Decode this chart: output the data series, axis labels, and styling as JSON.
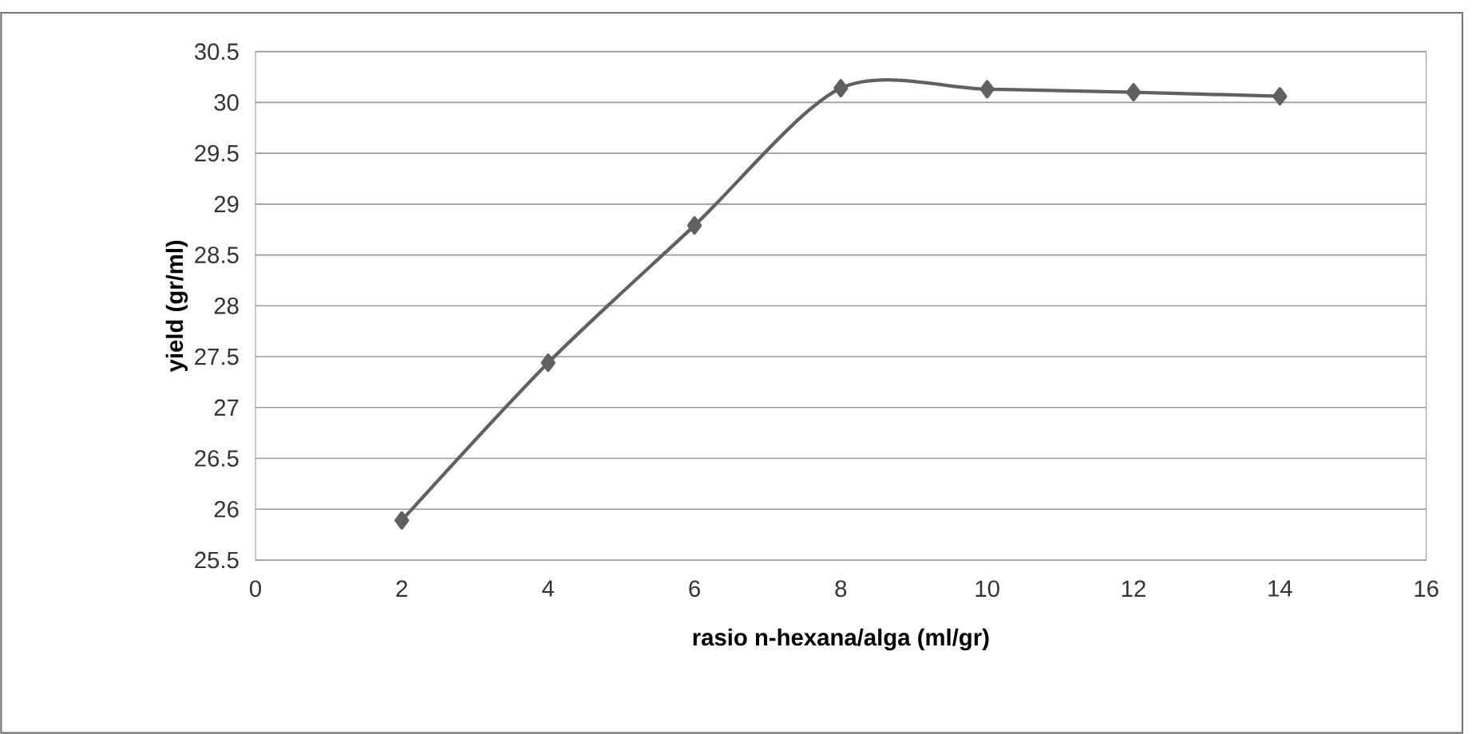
{
  "chart_data": {
    "type": "line",
    "xlabel": "rasio n-hexana/alga (ml/gr)",
    "ylabel": "yield (gr/ml)",
    "x": [
      2,
      4,
      6,
      8,
      10,
      12,
      14
    ],
    "series": [
      {
        "color": "#606060",
        "values": [
          25.89,
          27.44,
          28.79,
          30.14,
          30.13,
          30.1,
          30.06
        ]
      }
    ],
    "xlim": [
      0,
      16
    ],
    "xticks": [
      0,
      2,
      4,
      6,
      8,
      10,
      12,
      14,
      16
    ],
    "ylim": [
      25.5,
      30.5
    ],
    "yticks": [
      25.5,
      26,
      26.5,
      27,
      27.5,
      28,
      28.5,
      29,
      29.5,
      30,
      30.5
    ],
    "grid": "y",
    "marker": "diamond",
    "line_style": "solid"
  }
}
